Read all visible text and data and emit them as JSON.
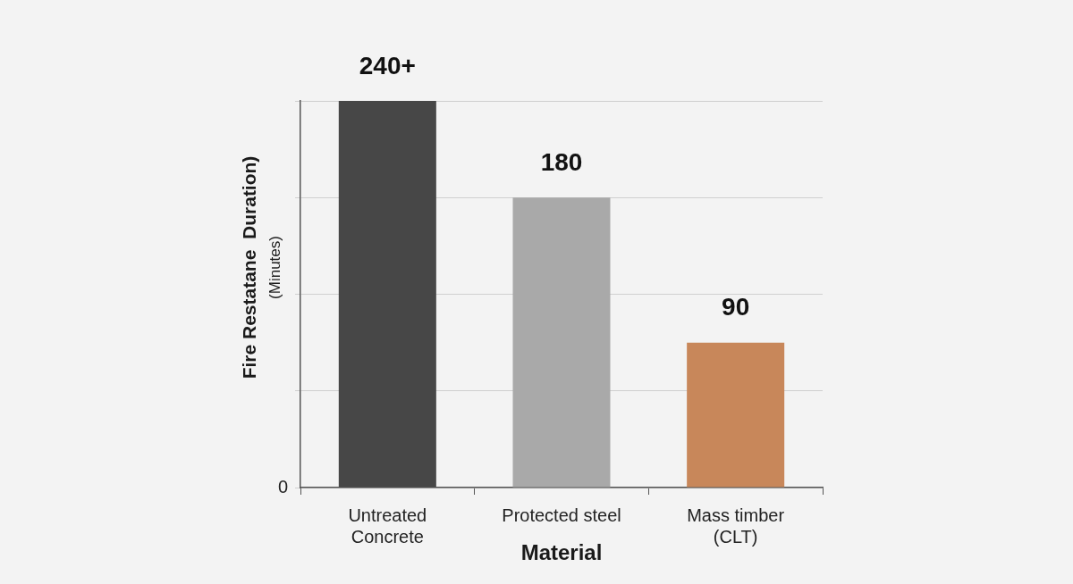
{
  "chart_data": {
    "type": "bar",
    "categories": [
      "Untreated Concrete",
      "Protected steel",
      "Mass timber (CLT)"
    ],
    "values": [
      240,
      180,
      90
    ],
    "colors": [
      "#474747",
      "#a9a9a9",
      "#c8875a"
    ],
    "value_labels": [
      "240+",
      "180",
      "90"
    ],
    "xlabel": "Material",
    "ylabel": "Fire Restatane  Duration)\n(Minutes)",
    "ylim": [
      0,
      240
    ],
    "annotations": [
      "0"
    ],
    "tick_labels": "x",
    "grid": "y"
  }
}
